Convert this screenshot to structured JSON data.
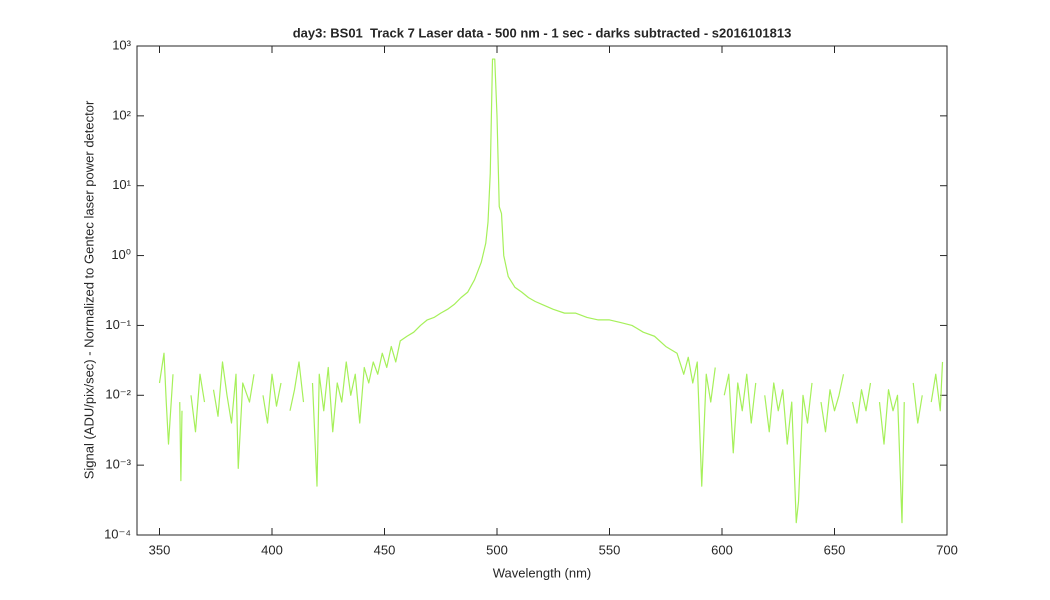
{
  "chart_data": {
    "type": "line",
    "title": "day3: BS01  Track 7 Laser data - 500 nm - 1 sec - darks subtracted - s2016101813",
    "x_label": "Wavelength (nm)",
    "y_label": "Signal (ADU/pix/sec) - Normalized to Gentec laser power detector",
    "color": "#a6f05a",
    "y_scale": "log",
    "xlim": [
      340,
      700
    ],
    "xticks": [
      350,
      400,
      450,
      500,
      550,
      600,
      650,
      700
    ],
    "ylim": [
      0.0001,
      1000
    ],
    "yticks": [
      {
        "value": 0.0001,
        "label": "10⁻⁴"
      },
      {
        "value": 0.001,
        "label": "10⁻³"
      },
      {
        "value": 0.01,
        "label": "10⁻²"
      },
      {
        "value": 0.1,
        "label": "10⁻¹"
      },
      {
        "value": 1,
        "label": "10⁰"
      },
      {
        "value": 10,
        "label": "10¹"
      },
      {
        "value": 100,
        "label": "10²"
      },
      {
        "value": 1000,
        "label": "10³"
      }
    ],
    "x": [
      350,
      352,
      353,
      354,
      356,
      358,
      359,
      359.5,
      360,
      362,
      364,
      366,
      368,
      370,
      372,
      374,
      376,
      378,
      380,
      382,
      384,
      385,
      387,
      390,
      392,
      394,
      396,
      398,
      400,
      402,
      404,
      406,
      408,
      410,
      412,
      414,
      416,
      418,
      420,
      421,
      423,
      425,
      427,
      429,
      431,
      433,
      435,
      437,
      439,
      441,
      443,
      445,
      447,
      449,
      451,
      453,
      455,
      457,
      460,
      463,
      466,
      469,
      472,
      475,
      478,
      481,
      484,
      487,
      490,
      493,
      495,
      496,
      497,
      498,
      499,
      500,
      501,
      502,
      503,
      505,
      508,
      511,
      514,
      517,
      520,
      525,
      530,
      535,
      540,
      545,
      550,
      555,
      560,
      565,
      570,
      575,
      580,
      583,
      585,
      587,
      589,
      591,
      593,
      595,
      597,
      599,
      601,
      603,
      605,
      607,
      609,
      611,
      613,
      615,
      617,
      619,
      621,
      623,
      625,
      627,
      629,
      631,
      633,
      634,
      636,
      638,
      640,
      642,
      644,
      646,
      648,
      650,
      652,
      654,
      656,
      658,
      660,
      662,
      664,
      666,
      668,
      670,
      672,
      674,
      676,
      678,
      680,
      681,
      683,
      685,
      687,
      689,
      691,
      693,
      695,
      697,
      698
    ],
    "values": [
      0.015,
      0.04,
      0.008,
      0.002,
      0.02,
      null,
      0.008,
      0.0006,
      0.006,
      null,
      0.01,
      0.003,
      0.02,
      0.008,
      null,
      0.012,
      0.005,
      0.03,
      0.01,
      0.004,
      0.02,
      0.0009,
      0.015,
      0.008,
      0.02,
      null,
      0.01,
      0.004,
      0.02,
      0.007,
      0.015,
      null,
      0.006,
      0.012,
      0.03,
      0.008,
      null,
      0.015,
      0.0005,
      0.02,
      0.006,
      0.025,
      0.003,
      0.015,
      0.008,
      0.03,
      0.01,
      0.02,
      0.004,
      0.025,
      0.015,
      0.03,
      0.02,
      0.04,
      0.025,
      0.05,
      0.03,
      0.06,
      0.07,
      0.08,
      0.1,
      0.12,
      0.13,
      0.15,
      0.17,
      0.2,
      0.25,
      0.3,
      0.45,
      0.8,
      1.5,
      3,
      15,
      650,
      650,
      100,
      5,
      4,
      1,
      0.5,
      0.35,
      0.3,
      0.25,
      0.22,
      0.2,
      0.17,
      0.15,
      0.15,
      0.13,
      0.12,
      0.12,
      0.11,
      0.1,
      0.08,
      0.07,
      0.05,
      0.04,
      0.02,
      0.035,
      0.015,
      0.03,
      0.0005,
      0.02,
      0.008,
      0.025,
      null,
      0.01,
      0.02,
      0.0015,
      0.015,
      0.006,
      0.02,
      0.004,
      0.015,
      null,
      0.01,
      0.003,
      0.015,
      0.006,
      0.012,
      0.002,
      0.008,
      0.00015,
      0.0003,
      0.01,
      0.004,
      0.015,
      null,
      0.008,
      0.003,
      0.012,
      0.006,
      0.01,
      0.02,
      null,
      0.008,
      0.004,
      0.012,
      0.006,
      0.015,
      null,
      0.008,
      0.002,
      0.012,
      0.006,
      0.01,
      0.00015,
      0.008,
      null,
      0.015,
      0.004,
      0.01,
      null,
      0.008,
      0.02,
      0.006,
      0.03
    ]
  }
}
